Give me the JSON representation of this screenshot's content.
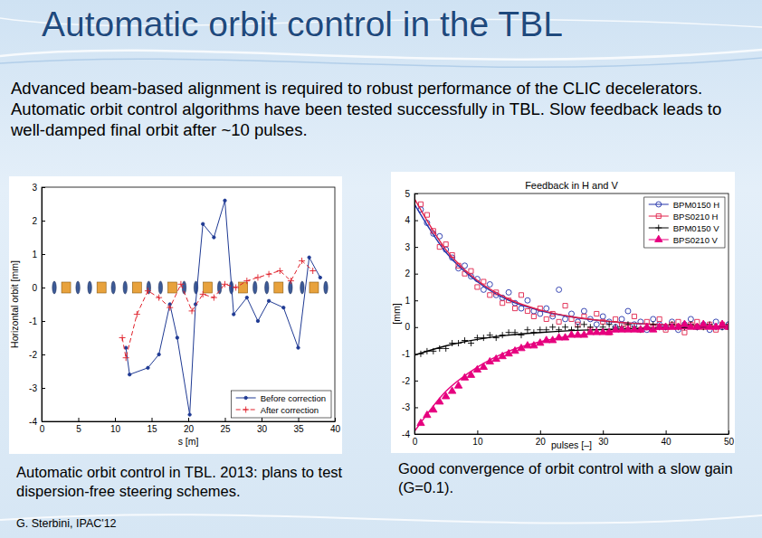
{
  "slide": {
    "title": "Automatic orbit control in the TBL",
    "text": "Advanced beam-based alignment is required to robust performance of the CLIC decelerators. Automatic orbit control algorithms have been tested successfully in TBL. Slow feedback leads to well-damped final orbit after ~10 pulses.",
    "captions": [
      "Automatic orbit control in TBL. 2013: plans to test dispersion-free steering schemes.",
      "Good convergence of orbit control with a slow gain (G=0.1)."
    ],
    "credit": "G. Sterbini, IPAC'12"
  },
  "chart_data": [
    {
      "type": "line",
      "x_label": "s [m]",
      "y_label": "Horizontal orbit [mm]",
      "xlim": [
        0,
        40
      ],
      "xticks": [
        0,
        5,
        10,
        15,
        20,
        25,
        30,
        35,
        40
      ],
      "ylim": [
        -4,
        3
      ],
      "yticks": [
        -4,
        -3,
        -2,
        -1,
        0,
        1,
        2,
        3
      ],
      "grid": false,
      "legend": "lower right",
      "series": [
        {
          "name": "Before correction",
          "color": "#1f3a93",
          "marker": "point",
          "line_style": "solid",
          "x": [
            11.5,
            12,
            14.5,
            16,
            17.5,
            18.5,
            20.2,
            21,
            22,
            23.5,
            25,
            26.2,
            28,
            29.5,
            31,
            33,
            35,
            36.5,
            38
          ],
          "values": [
            -1.8,
            -2.6,
            -2.4,
            -2.0,
            -0.5,
            -1.5,
            -3.8,
            -0.5,
            1.9,
            1.5,
            2.6,
            -0.8,
            -0.3,
            -1.0,
            -0.4,
            -0.6,
            -1.8,
            0.9,
            0.3
          ]
        },
        {
          "name": "After correction",
          "color": "#e0202a",
          "marker": "plus",
          "line_style": "dashed",
          "x": [
            11,
            11.5,
            13,
            14.5,
            16,
            17.5,
            19,
            20.5,
            22,
            23.5,
            25,
            26.5,
            28,
            29.5,
            31,
            32.5,
            34,
            35.5,
            37
          ],
          "values": [
            -1.5,
            -2.1,
            -0.8,
            -0.1,
            -0.3,
            -0.6,
            0.1,
            -0.7,
            -0.2,
            -0.3,
            0.1,
            0.0,
            0.2,
            0.3,
            0.4,
            0.5,
            0.2,
            0.8,
            0.5
          ]
        }
      ]
    },
    {
      "type": "scatter",
      "title": "Feedback in H and V",
      "x_label": "pulses [–]",
      "y_label": "[mm]",
      "xlim": [
        0,
        50
      ],
      "xticks": [
        0,
        10,
        20,
        30,
        40,
        50
      ],
      "ylim": [
        -4,
        5
      ],
      "yticks": [
        -4,
        -3,
        -2,
        -1,
        0,
        1,
        2,
        3,
        4,
        5
      ],
      "grid": false,
      "legend": "upper right",
      "x": [
        1,
        2,
        3,
        4,
        5,
        6,
        7,
        8,
        9,
        10,
        11,
        12,
        13,
        14,
        15,
        16,
        17,
        18,
        19,
        20,
        21,
        22,
        23,
        24,
        25,
        26,
        27,
        28,
        29,
        30,
        31,
        32,
        33,
        34,
        35,
        36,
        37,
        38,
        39,
        40,
        41,
        42,
        43,
        44,
        45,
        46,
        47,
        48,
        49,
        50
      ],
      "series": [
        {
          "name": "BPM0150 H",
          "color": "#2233aa",
          "marker": "circle",
          "values": [
            4.4,
            3.9,
            3.5,
            3.4,
            2.9,
            2.6,
            2.2,
            2.3,
            1.9,
            1.8,
            1.4,
            1.6,
            1.2,
            1.1,
            1.3,
            0.9,
            0.7,
            1.0,
            0.6,
            0.5,
            0.7,
            0.4,
            1.4,
            0.3,
            0.5,
            0.2,
            0.6,
            0.3,
            0.1,
            0.4,
            0.2,
            0.0,
            0.3,
            0.6,
            0.1,
            0.2,
            -0.1,
            0.3,
            0.1,
            0.0,
            0.2,
            -0.1,
            0.1,
            0.3,
            0.0,
            0.1,
            -0.1,
            0.2,
            0.0,
            0.1
          ],
          "fit": {
            "x": [
              0,
              5,
              10,
              15,
              20,
              25,
              30,
              35,
              40,
              45,
              50
            ],
            "values": [
              4.6,
              2.8,
              1.7,
              1.0,
              0.62,
              0.38,
              0.23,
              0.14,
              0.08,
              0.05,
              0.03
            ]
          }
        },
        {
          "name": "BPS0210 H",
          "color": "#e0204a",
          "marker": "square",
          "values": [
            4.6,
            4.2,
            3.6,
            3.0,
            3.1,
            2.7,
            2.3,
            2.0,
            2.1,
            1.5,
            1.7,
            1.2,
            1.3,
            0.9,
            1.0,
            0.7,
            1.2,
            0.6,
            0.4,
            0.7,
            0.3,
            0.5,
            0.2,
            0.8,
            0.3,
            0.1,
            0.4,
            -0.1,
            0.5,
            0.2,
            -0.2,
            0.3,
            0.1,
            0.0,
            0.4,
            -0.1,
            0.2,
            0.0,
            0.3,
            -0.1,
            0.1,
            0.2,
            -0.2,
            0.1,
            0.2,
            0.0,
            0.1,
            -0.1,
            0.1,
            0.0
          ],
          "fit": {
            "x": [
              0,
              5,
              10,
              15,
              20,
              25,
              30,
              35,
              40,
              45,
              50
            ],
            "values": [
              4.8,
              2.9,
              1.75,
              1.05,
              0.64,
              0.39,
              0.24,
              0.14,
              0.09,
              0.05,
              0.03
            ]
          }
        },
        {
          "name": "BPM0150 V",
          "color": "#000000",
          "marker": "plus",
          "values": [
            -1.0,
            -0.9,
            -0.9,
            -0.8,
            -0.8,
            -0.6,
            -0.6,
            -0.5,
            -0.6,
            -0.4,
            -0.4,
            -0.3,
            -0.4,
            -0.3,
            -0.2,
            -0.2,
            -0.3,
            -0.1,
            -0.2,
            -0.1,
            -0.1,
            0.0,
            -0.1,
            0.0,
            -0.1,
            0.0,
            0.1,
            0.0,
            -0.1,
            0.0,
            0.1,
            0.0,
            0.0,
            0.1,
            0.0,
            -0.1,
            0.0,
            0.1,
            0.0,
            0.0,
            0.1,
            0.0,
            0.0,
            0.1,
            0.0,
            0.0,
            0.1,
            0.0,
            0.0,
            0.1
          ],
          "fit": {
            "x": [
              0,
              5,
              10,
              15,
              20,
              25,
              30,
              35,
              40,
              45,
              50
            ],
            "values": [
              -1.05,
              -0.7,
              -0.46,
              -0.3,
              -0.2,
              -0.13,
              -0.09,
              -0.06,
              -0.04,
              -0.03,
              -0.02
            ]
          }
        },
        {
          "name": "BPS0210 V",
          "color": "#e6007e",
          "marker": "triangle",
          "values": [
            -3.6,
            -3.3,
            -3.1,
            -2.8,
            -2.6,
            -2.4,
            -2.2,
            -1.9,
            -1.8,
            -1.6,
            -1.5,
            -1.3,
            -1.2,
            -1.1,
            -1.0,
            -0.9,
            -0.8,
            -0.7,
            -0.7,
            -0.6,
            -0.5,
            -0.5,
            -0.4,
            -0.4,
            -0.3,
            -0.3,
            -0.3,
            -0.2,
            -0.2,
            -0.2,
            -0.2,
            -0.1,
            -0.1,
            -0.1,
            -0.1,
            -0.1,
            0.0,
            -0.1,
            0.0,
            0.0,
            0.0,
            0.0,
            0.1,
            0.0,
            0.0,
            0.1,
            0.0,
            0.0,
            0.1,
            0.0
          ],
          "fit": {
            "x": [
              0,
              5,
              10,
              15,
              20,
              25,
              30,
              35,
              40,
              45,
              50
            ],
            "values": [
              -3.9,
              -2.4,
              -1.5,
              -0.9,
              -0.55,
              -0.33,
              -0.2,
              -0.12,
              -0.07,
              -0.04,
              -0.03
            ]
          }
        }
      ]
    }
  ]
}
